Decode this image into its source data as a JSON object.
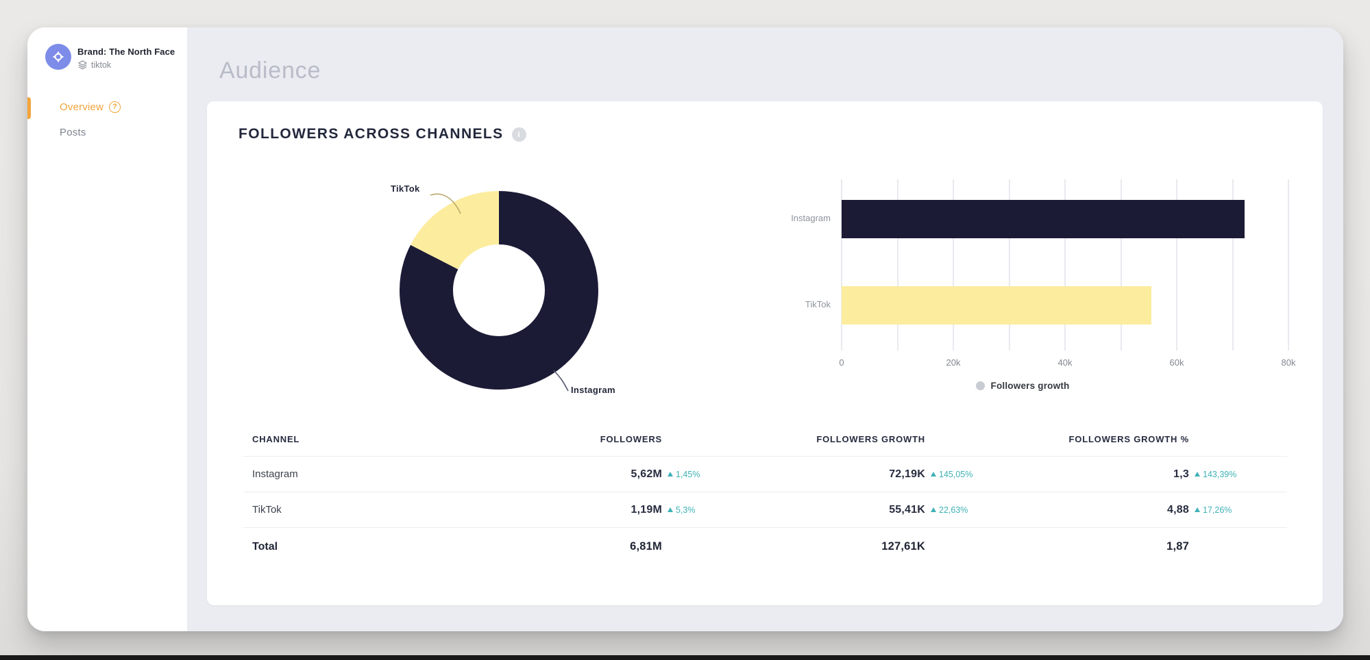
{
  "header": {
    "title": "Audience"
  },
  "sidebar": {
    "brand": {
      "label": "Brand: The North Face",
      "project": "tiktok"
    },
    "nav": [
      {
        "label": "Overview",
        "active": true
      },
      {
        "label": "Posts",
        "active": false
      }
    ]
  },
  "icons": {
    "help": "?",
    "info": "i"
  },
  "card": {
    "title": "FOLLOWERS ACROSS CHANNELS"
  },
  "chart_data": [
    {
      "type": "pie",
      "subtype": "donut",
      "title": "Followers across channels",
      "labels": [
        "Instagram",
        "TikTok"
      ],
      "values": [
        5620000,
        1190000
      ],
      "shares_pct": [
        82.5,
        17.5
      ],
      "colors": [
        "#1b1b36",
        "#fcec9e"
      ],
      "legend_position": "callout-labels"
    },
    {
      "type": "bar",
      "orientation": "horizontal",
      "title": "Followers growth by channel",
      "categories": [
        "Instagram",
        "TikTok"
      ],
      "series": [
        {
          "name": "Followers growth",
          "values": [
            72190,
            55410
          ]
        }
      ],
      "bar_colors": [
        "#1b1b36",
        "#fcec9e"
      ],
      "xlim": [
        0,
        80000
      ],
      "xticks": [
        "0",
        "20k",
        "40k",
        "60k",
        "80k"
      ],
      "grid": "vertical",
      "legend": {
        "label": "Followers growth",
        "position": "bottom"
      }
    }
  ],
  "table": {
    "headers": [
      "CHANNEL",
      "FOLLOWERS",
      "FOLLOWERS GROWTH",
      "FOLLOWERS GROWTH %"
    ],
    "rows": [
      {
        "channel": "Instagram",
        "followers": "5,62M",
        "followers_delta": "1,45%",
        "growth": "72,19K",
        "growth_delta": "145,05%",
        "growth_pct": "1,3",
        "growth_pct_delta": "143,39%"
      },
      {
        "channel": "TikTok",
        "followers": "1,19M",
        "followers_delta": "5,3%",
        "growth": "55,41K",
        "growth_delta": "22,63%",
        "growth_pct": "4,88",
        "growth_pct_delta": "17,26%"
      }
    ],
    "total": {
      "label": "Total",
      "followers": "6,81M",
      "growth": "127,61K",
      "growth_pct": "1,87"
    }
  },
  "colors": {
    "accent_orange": "#f2a43b",
    "positive_teal": "#3fb1b5",
    "navy": "#1b1b36",
    "yellow": "#fcec9e",
    "main_bg": "#eaecf1",
    "muted_title": "#b8bcc8"
  }
}
